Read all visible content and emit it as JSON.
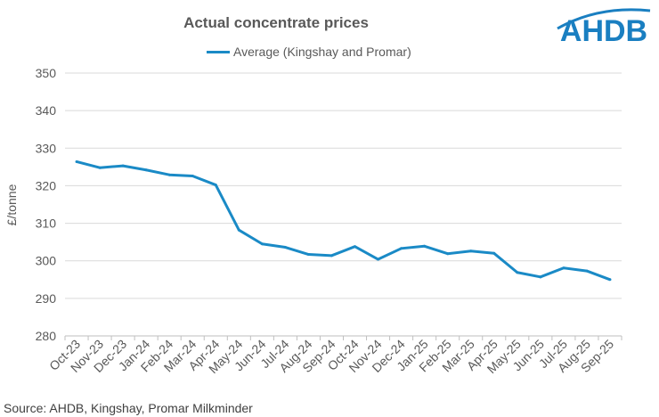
{
  "logo": {
    "text": "AHDB",
    "color": "#1a7fc1"
  },
  "source": "Source: AHDB, Kingshay, Promar Milkminder",
  "chart_data": {
    "type": "line",
    "title": "Actual concentrate prices",
    "xlabel": "",
    "ylabel": "£/tonne",
    "ylim": [
      280,
      350
    ],
    "yticks": [
      280,
      290,
      300,
      310,
      320,
      330,
      340,
      350
    ],
    "grid": true,
    "legend_position": "top",
    "categories": [
      "Oct-23",
      "Nov-23",
      "Dec-23",
      "Jan-24",
      "Feb-24",
      "Mar-24",
      "Apr-24",
      "May-24",
      "Jun-24",
      "Jul-24",
      "Aug-24",
      "Sep-24",
      "Oct-24",
      "Nov-24",
      "Dec-24",
      "Jan-25",
      "Feb-25",
      "Mar-25",
      "Apr-25",
      "May-25",
      "Jun-25",
      "Jul-25",
      "Aug-25",
      "Sep-25"
    ],
    "series": [
      {
        "name": "Average (Kingshay and Promar)",
        "color": "#1a8ac6",
        "values": [
          326.4,
          324.8,
          325.3,
          324.2,
          322.9,
          322.6,
          320.2,
          308.2,
          304.5,
          303.6,
          301.7,
          301.4,
          303.8,
          300.4,
          303.3,
          303.9,
          301.9,
          302.6,
          302.0,
          296.9,
          295.7,
          298.1,
          297.3,
          295.0
        ]
      }
    ]
  }
}
